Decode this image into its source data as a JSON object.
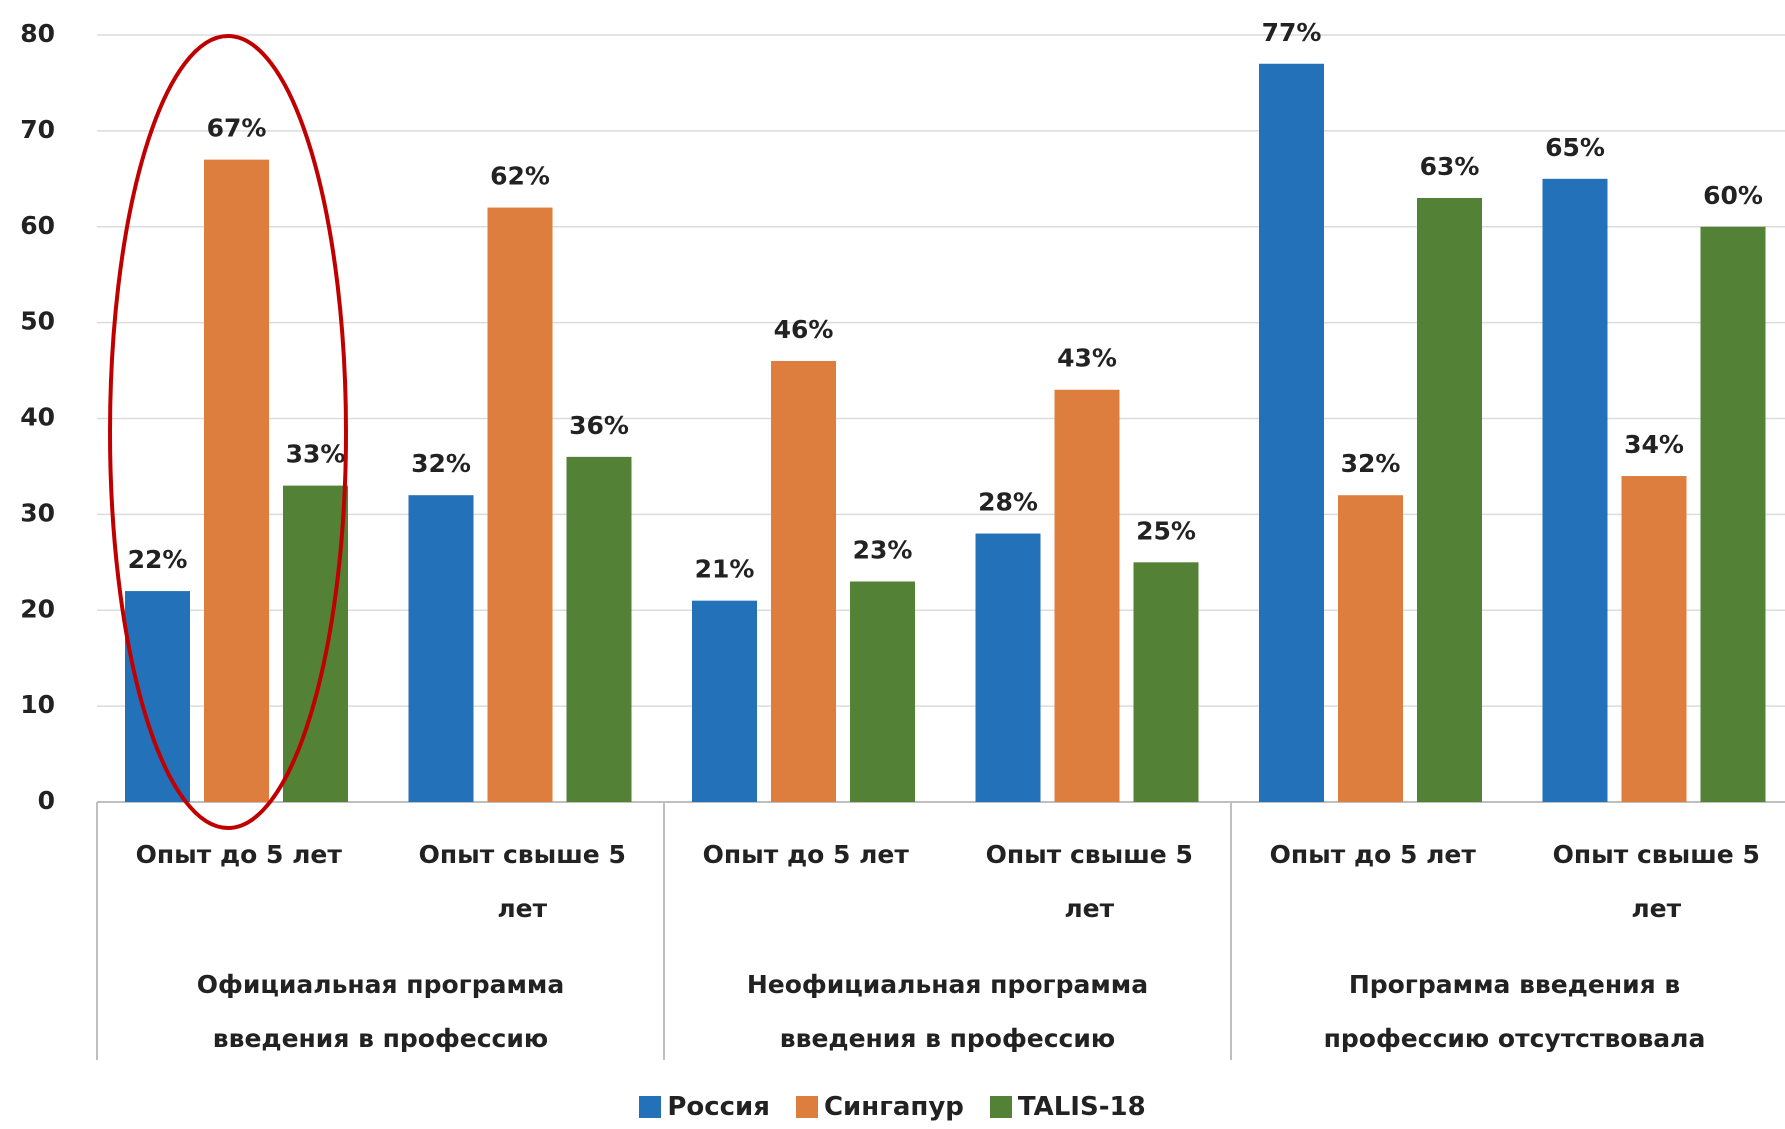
{
  "chart_data": {
    "type": "bar",
    "categories": [
      "Опыт до 5 лет",
      "Опыт свыше 5 лет",
      "Опыт до 5 лет",
      "Опыт свыше 5 лет",
      "Опыт до 5 лет",
      "Опыт свыше 5 лет"
    ],
    "groups": [
      "Официальная программа введения в профессию",
      "Неофициальная программа введения в профессию",
      "Программа введения в профессию отсутствовала"
    ],
    "series": [
      {
        "name": "Россия",
        "color": "#2371b8",
        "values": [
          22,
          32,
          21,
          28,
          77,
          65
        ],
        "value_labels": [
          "22%",
          "32%",
          "21%",
          "28%",
          "77%",
          "65%"
        ]
      },
      {
        "name": "Сингапур",
        "color": "#dd7e3e",
        "values": [
          67,
          62,
          46,
          43,
          32,
          34
        ],
        "value_labels": [
          "67%",
          "62%",
          "46%",
          "43%",
          "32%",
          "34%"
        ]
      },
      {
        "name": "TALIS-18",
        "color": "#538135",
        "values": [
          33,
          36,
          23,
          25,
          63,
          60
        ],
        "value_labels": [
          "33%",
          "36%",
          "23%",
          "25%",
          "63%",
          "60%"
        ]
      }
    ],
    "ylim": [
      0,
      80
    ],
    "yticks": [
      0,
      10,
      20,
      30,
      40,
      50,
      60,
      70,
      80
    ],
    "grid": true,
    "legend": "bottom"
  }
}
